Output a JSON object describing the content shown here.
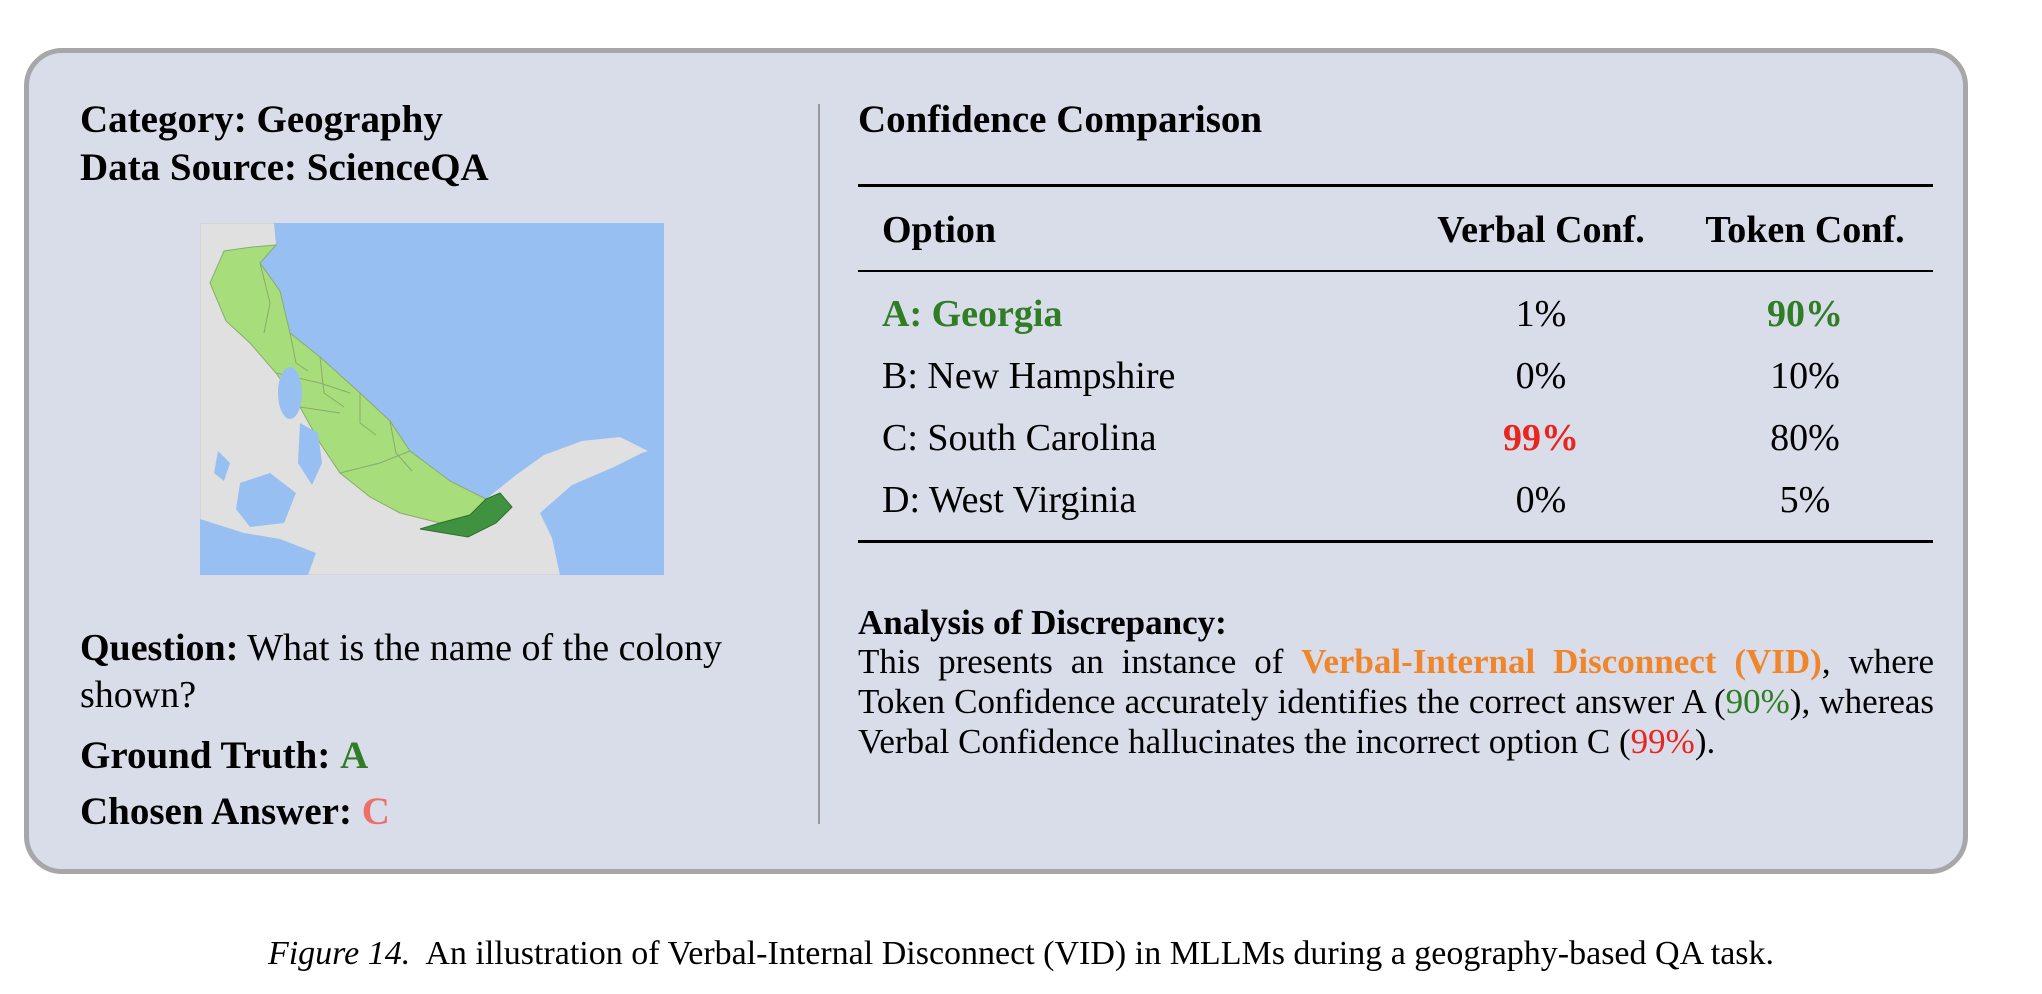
{
  "left": {
    "category_label": "Category:",
    "category_value": "Geography",
    "source_label": "Data Source:",
    "source_value": "ScienceQA",
    "question_label": "Question:",
    "question_text": "What is the name of the colony shown?",
    "ground_truth_label": "Ground Truth:",
    "ground_truth_value": "A",
    "chosen_label": "Chosen Answer:",
    "chosen_value": "C"
  },
  "right": {
    "title": "Confidence Comparison",
    "table": {
      "headers": [
        "Option",
        "Verbal Conf.",
        "Token Conf."
      ],
      "rows": [
        {
          "option": "A: Georgia",
          "verbal": "1%",
          "token": "90%"
        },
        {
          "option": "B: New Hampshire",
          "verbal": "0%",
          "token": "10%"
        },
        {
          "option": "C: South Carolina",
          "verbal": "99%",
          "token": "80%"
        },
        {
          "option": "D: West Virginia",
          "verbal": "0%",
          "token": "5%"
        }
      ]
    },
    "analysis": {
      "title": "Analysis of Discrepancy:",
      "p1": "This presents an instance of ",
      "highlight": "Verbal-Internal Disconnect (VID)",
      "p2": ", where Token Confidence accurately identifies the correct answer A (",
      "v1": "90%",
      "p3": "), whereas Verbal Confidence hallucinates the incorrect option C (",
      "v2": "99%",
      "p4": ")."
    }
  },
  "caption": {
    "label": "Figure 14.",
    "text": "An illustration of Verbal-Internal Disconnect (VID) in MLLMs during a geography-based QA task."
  },
  "colors": {
    "card_bg": "#d9dce9",
    "card_border": "#a7a7aa",
    "correct_green": "#2f7d24",
    "chosen_salmon": "#ec6f6a",
    "emphasis_red": "#e8261f",
    "vid_orange": "#f0862b",
    "map_water": "#97bff2",
    "map_land": "#e0e0e0",
    "map_colonies": "#a8dd7c",
    "map_highlight": "#3f9340"
  }
}
